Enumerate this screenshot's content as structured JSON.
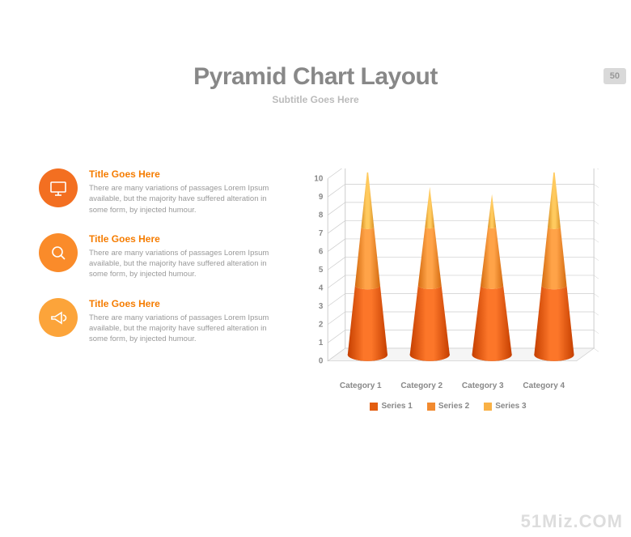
{
  "page_number": "50",
  "header": {
    "title": "Pyramid Chart Layout",
    "subtitle": "Subtitle Goes Here",
    "title_color": "#888888",
    "title_fontsize": 30,
    "subtitle_color": "#bbbbbb",
    "subtitle_fontsize": 12
  },
  "items": [
    {
      "title": "Title Goes Here",
      "title_color": "#f57c00",
      "body": "There are many variations of passages Lorem Ipsum available, but the majority have suffered alteration in some form, by injected humour.",
      "icon": "monitor-icon",
      "icon_bg": "#f36f21"
    },
    {
      "title": "Title Goes Here",
      "title_color": "#f57c00",
      "body": "There are many variations of passages Lorem Ipsum available, but the majority have suffered alteration in some form, by injected humour.",
      "icon": "magnify-icon",
      "icon_bg": "#fa8b2a"
    },
    {
      "title": "Title Goes Here",
      "title_color": "#f57c00",
      "body": "There are many variations of passages Lorem Ipsum available, but the majority have suffered alteration in some form, by injected humour.",
      "icon": "megaphone-icon",
      "icon_bg": "#fca43a"
    }
  ],
  "chart": {
    "type": "cone-3d",
    "categories": [
      "Category 1",
      "Category 2",
      "Category 3",
      "Category 4"
    ],
    "ylim": [
      0,
      10
    ],
    "ytick_step": 1,
    "grid_color": "#cccccc",
    "axis_fontsize": 10,
    "axis_color": "#888888",
    "background_color": "#ffffff",
    "series": [
      {
        "name": "Series 1",
        "color": "#e35d10",
        "bounds": [
          0,
          3.8
        ]
      },
      {
        "name": "Series 2",
        "color": "#f28a2f",
        "bounds": [
          3.8,
          7
        ]
      },
      {
        "name": "Series 3",
        "color": "#f9b145",
        "bounds": [
          7,
          10
        ]
      }
    ],
    "heights": [
      10.3,
      9.2,
      8.8,
      10.3
    ]
  },
  "watermark": "51Miz.COM"
}
